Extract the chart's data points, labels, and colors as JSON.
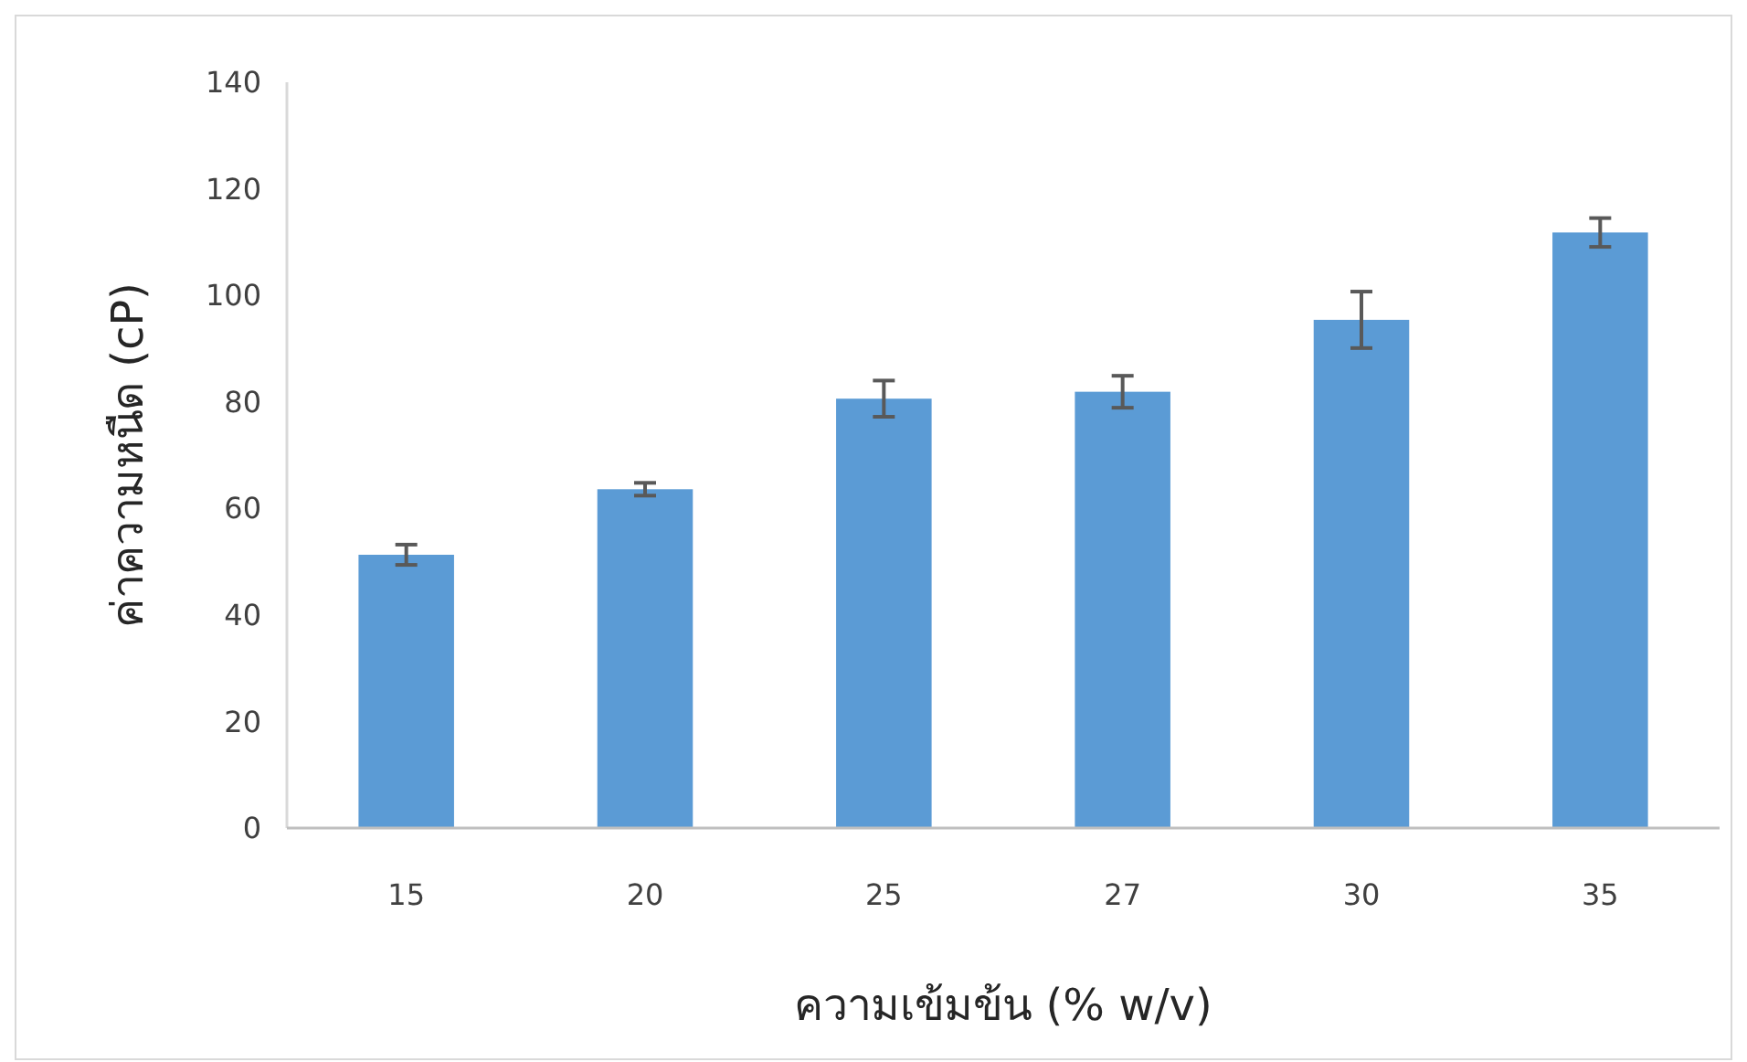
{
  "chart_data": {
    "type": "bar",
    "xlabel": "ความเข้มข้น (% w/v)",
    "ylabel": "ค่าความหนืด (cP)",
    "categories": [
      "15",
      "20",
      "25",
      "27",
      "30",
      "35"
    ],
    "values": [
      51.3,
      63.6,
      80.6,
      81.9,
      95.4,
      111.8
    ],
    "errors": [
      1.9,
      1.2,
      3.4,
      3.0,
      5.3,
      2.7
    ],
    "color": "#5b9bd5",
    "ylim": [
      0,
      140
    ],
    "yticks": [
      0,
      20,
      40,
      60,
      80,
      100,
      120,
      140
    ],
    "grid": false
  }
}
